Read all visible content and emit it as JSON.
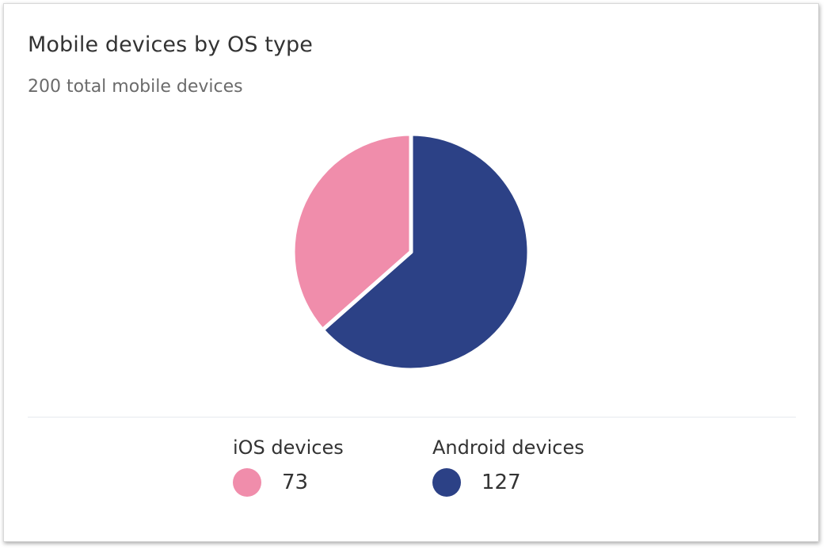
{
  "card": {
    "title": "Mobile devices by OS type",
    "subtitle": "200 total mobile devices"
  },
  "chart_data": {
    "type": "pie",
    "title": "Mobile devices by OS type",
    "subtitle": "200 total mobile devices",
    "categories": [
      "iOS devices",
      "Android devices"
    ],
    "values": [
      73,
      127
    ],
    "colors": [
      "#f08dab",
      "#2c4186"
    ],
    "legend": "bottom"
  },
  "legend": [
    {
      "label": "iOS devices",
      "value": "73",
      "color": "#f08dab"
    },
    {
      "label": "Android devices",
      "value": "127",
      "color": "#2c4186"
    }
  ]
}
